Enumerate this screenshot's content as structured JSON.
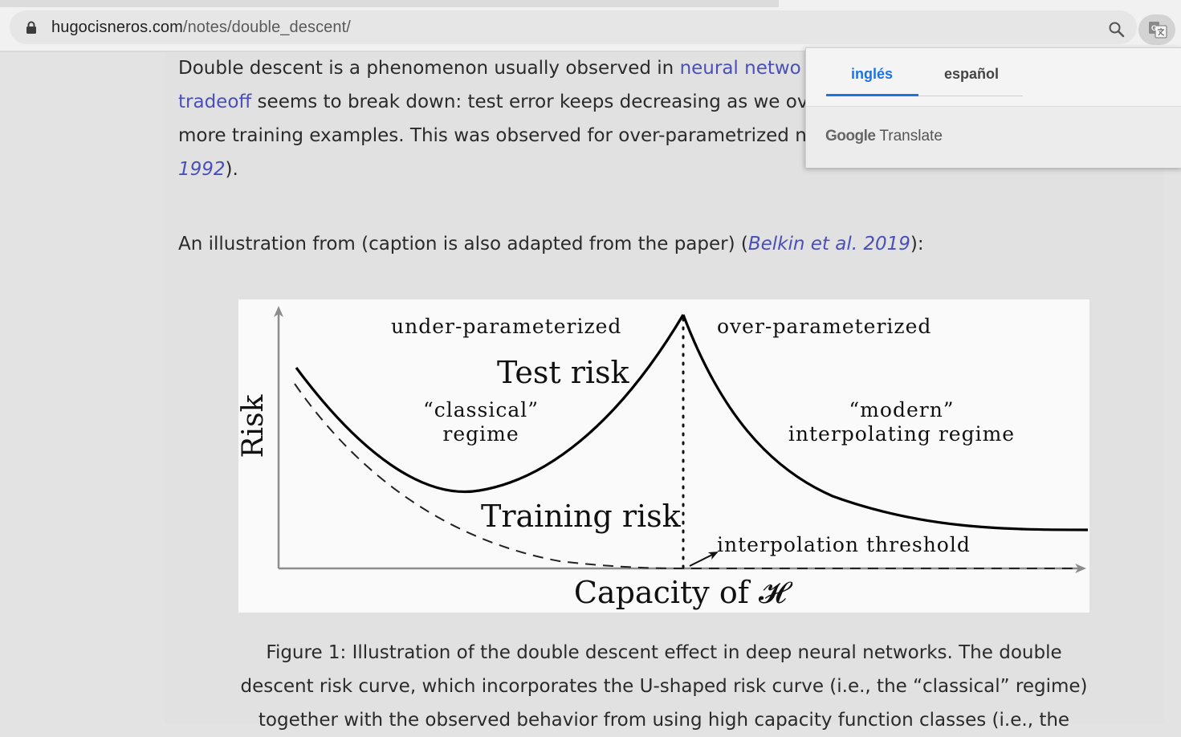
{
  "browser": {
    "url_host": "hugocisneros.com",
    "url_path": "/notes/double_descent/"
  },
  "article": {
    "p1_intro": "Double descent is a phenomenon usually observed in ",
    "p1_link_nn": "neural netwo",
    "p1_link_tradeoff": "tradeoff",
    "p1_line2_rest": " seems to break down: test error keeps decreasing as we ov",
    "p1_line3": "more training examples. This was observed for over-parametrized n",
    "p1_link_year": "1992",
    "p1_end": ").",
    "p2_text": "An illustration from (caption is also adapted from the paper) (",
    "p2_link": "Belkin et al. 2019",
    "p2_end": "):"
  },
  "figure": {
    "label_under": "under-parameterized",
    "label_over": "over-parameterized",
    "label_test_risk": "Test risk",
    "label_classical_1": "“classical”",
    "label_classical_2": "regime",
    "label_modern_1": "“modern”",
    "label_modern_2": "interpolating regime",
    "label_training_risk": "Training risk",
    "label_threshold": "interpolation threshold",
    "ylabel": "Risk",
    "xlabel": "Capacity of 𝓗"
  },
  "caption": {
    "line1": "Figure 1: Illustration of the double descent effect in deep neural networks. The double",
    "line2": "descent risk curve, which incorporates the U-shaped risk curve (i.e., the “classical” regime)",
    "line3": "together with the observed behavior from using high capacity function classes (i.e., the"
  },
  "translate_popup": {
    "tab_source": "inglés",
    "tab_target": "español",
    "brand_google": "Google",
    "brand_translate": " Translate"
  }
}
